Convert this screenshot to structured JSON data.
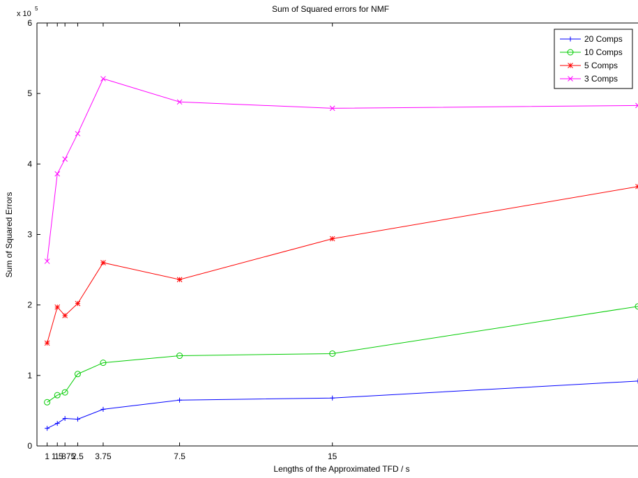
{
  "chart_data": {
    "type": "line",
    "title": "Sum of Squared errors for NMF",
    "xlabel": "Lengths of the Approximated TFD / s",
    "ylabel": "Sum of Squared Errors",
    "y_exponent_label": "x 10",
    "y_exponent": "5",
    "xlim": [
      0.5,
      30
    ],
    "ylim": [
      0,
      600000
    ],
    "x_ticks": [
      1,
      1.5,
      1.875,
      2.5,
      3.75,
      7.5,
      15
    ],
    "x_tick_labels": [
      "1",
      "1.5",
      "1.875",
      "2.5",
      "3.75",
      "7.5",
      "15"
    ],
    "y_ticks": [
      0,
      100000,
      200000,
      300000,
      400000,
      500000,
      600000
    ],
    "y_tick_labels": [
      "0",
      "1",
      "2",
      "3",
      "4",
      "5",
      "6"
    ],
    "grid": false,
    "legend_position": "top-right",
    "x": [
      1,
      1.5,
      1.875,
      2.5,
      3.75,
      7.5,
      15,
      30
    ],
    "series": [
      {
        "name": "20 Comps",
        "color": "#0000ff",
        "marker": "plus",
        "values": [
          25000,
          32000,
          39000,
          38000,
          52000,
          65000,
          68000,
          92000
        ]
      },
      {
        "name": "10 Comps",
        "color": "#00cc00",
        "marker": "circle",
        "values": [
          62000,
          72000,
          76000,
          102000,
          118000,
          128000,
          131000,
          198000
        ]
      },
      {
        "name": "5 Comps",
        "color": "#ff0000",
        "marker": "star",
        "values": [
          146000,
          197000,
          185000,
          202000,
          260000,
          236000,
          294000,
          368000
        ]
      },
      {
        "name": "3 Comps",
        "color": "#ff00ff",
        "marker": "x",
        "values": [
          262000,
          386000,
          407000,
          443000,
          521000,
          488000,
          479000,
          483000
        ]
      }
    ]
  }
}
